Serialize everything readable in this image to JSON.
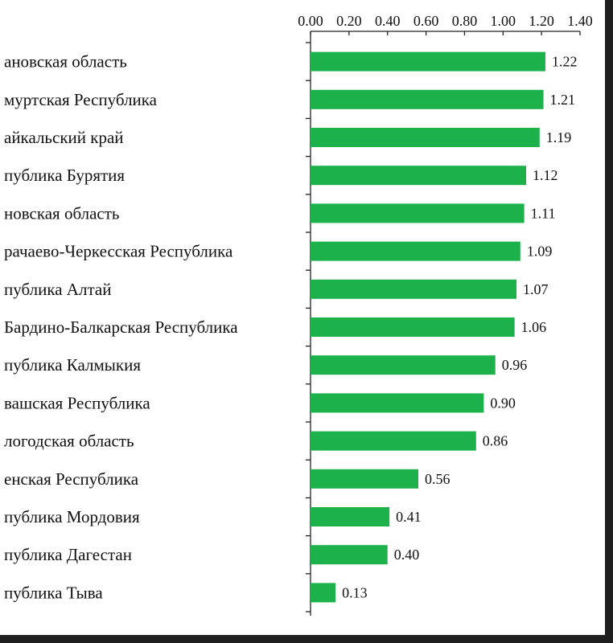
{
  "chart_data": {
    "type": "bar",
    "orientation": "horizontal",
    "categories": [
      "ановская область",
      "муртская Республика",
      "айкальский край",
      "публика Бурятия",
      "новская область",
      "рачаево-Черкесская Республика",
      "публика Алтай",
      "Бардино-Балкарская Республика",
      "публика Калмыкия",
      "вашская Республика",
      "логодская область",
      "енская Республика",
      "публика Мордовия",
      "публика Дагестан",
      "публика Тыва"
    ],
    "values": [
      1.22,
      1.21,
      1.19,
      1.12,
      1.11,
      1.09,
      1.07,
      1.06,
      0.96,
      0.9,
      0.86,
      0.56,
      0.41,
      0.4,
      0.13
    ],
    "value_labels": [
      "1.22",
      "1.21",
      "1.19",
      "1.12",
      "1.11",
      "1.09",
      "1.07",
      "1.06",
      "0.96",
      "0.90",
      "0.86",
      "0.56",
      "0.41",
      "0.40",
      "0.13"
    ],
    "xlim": [
      0,
      1.4
    ],
    "ticks": [
      "0.00",
      "0.20",
      "0.40",
      "0.60",
      "0.80",
      "1.00",
      "1.20",
      "1.40"
    ],
    "axis_position": "top",
    "title": "",
    "xlabel": "",
    "ylabel": "",
    "grid": false,
    "legend": "none",
    "bar_color": "#1db14b"
  }
}
